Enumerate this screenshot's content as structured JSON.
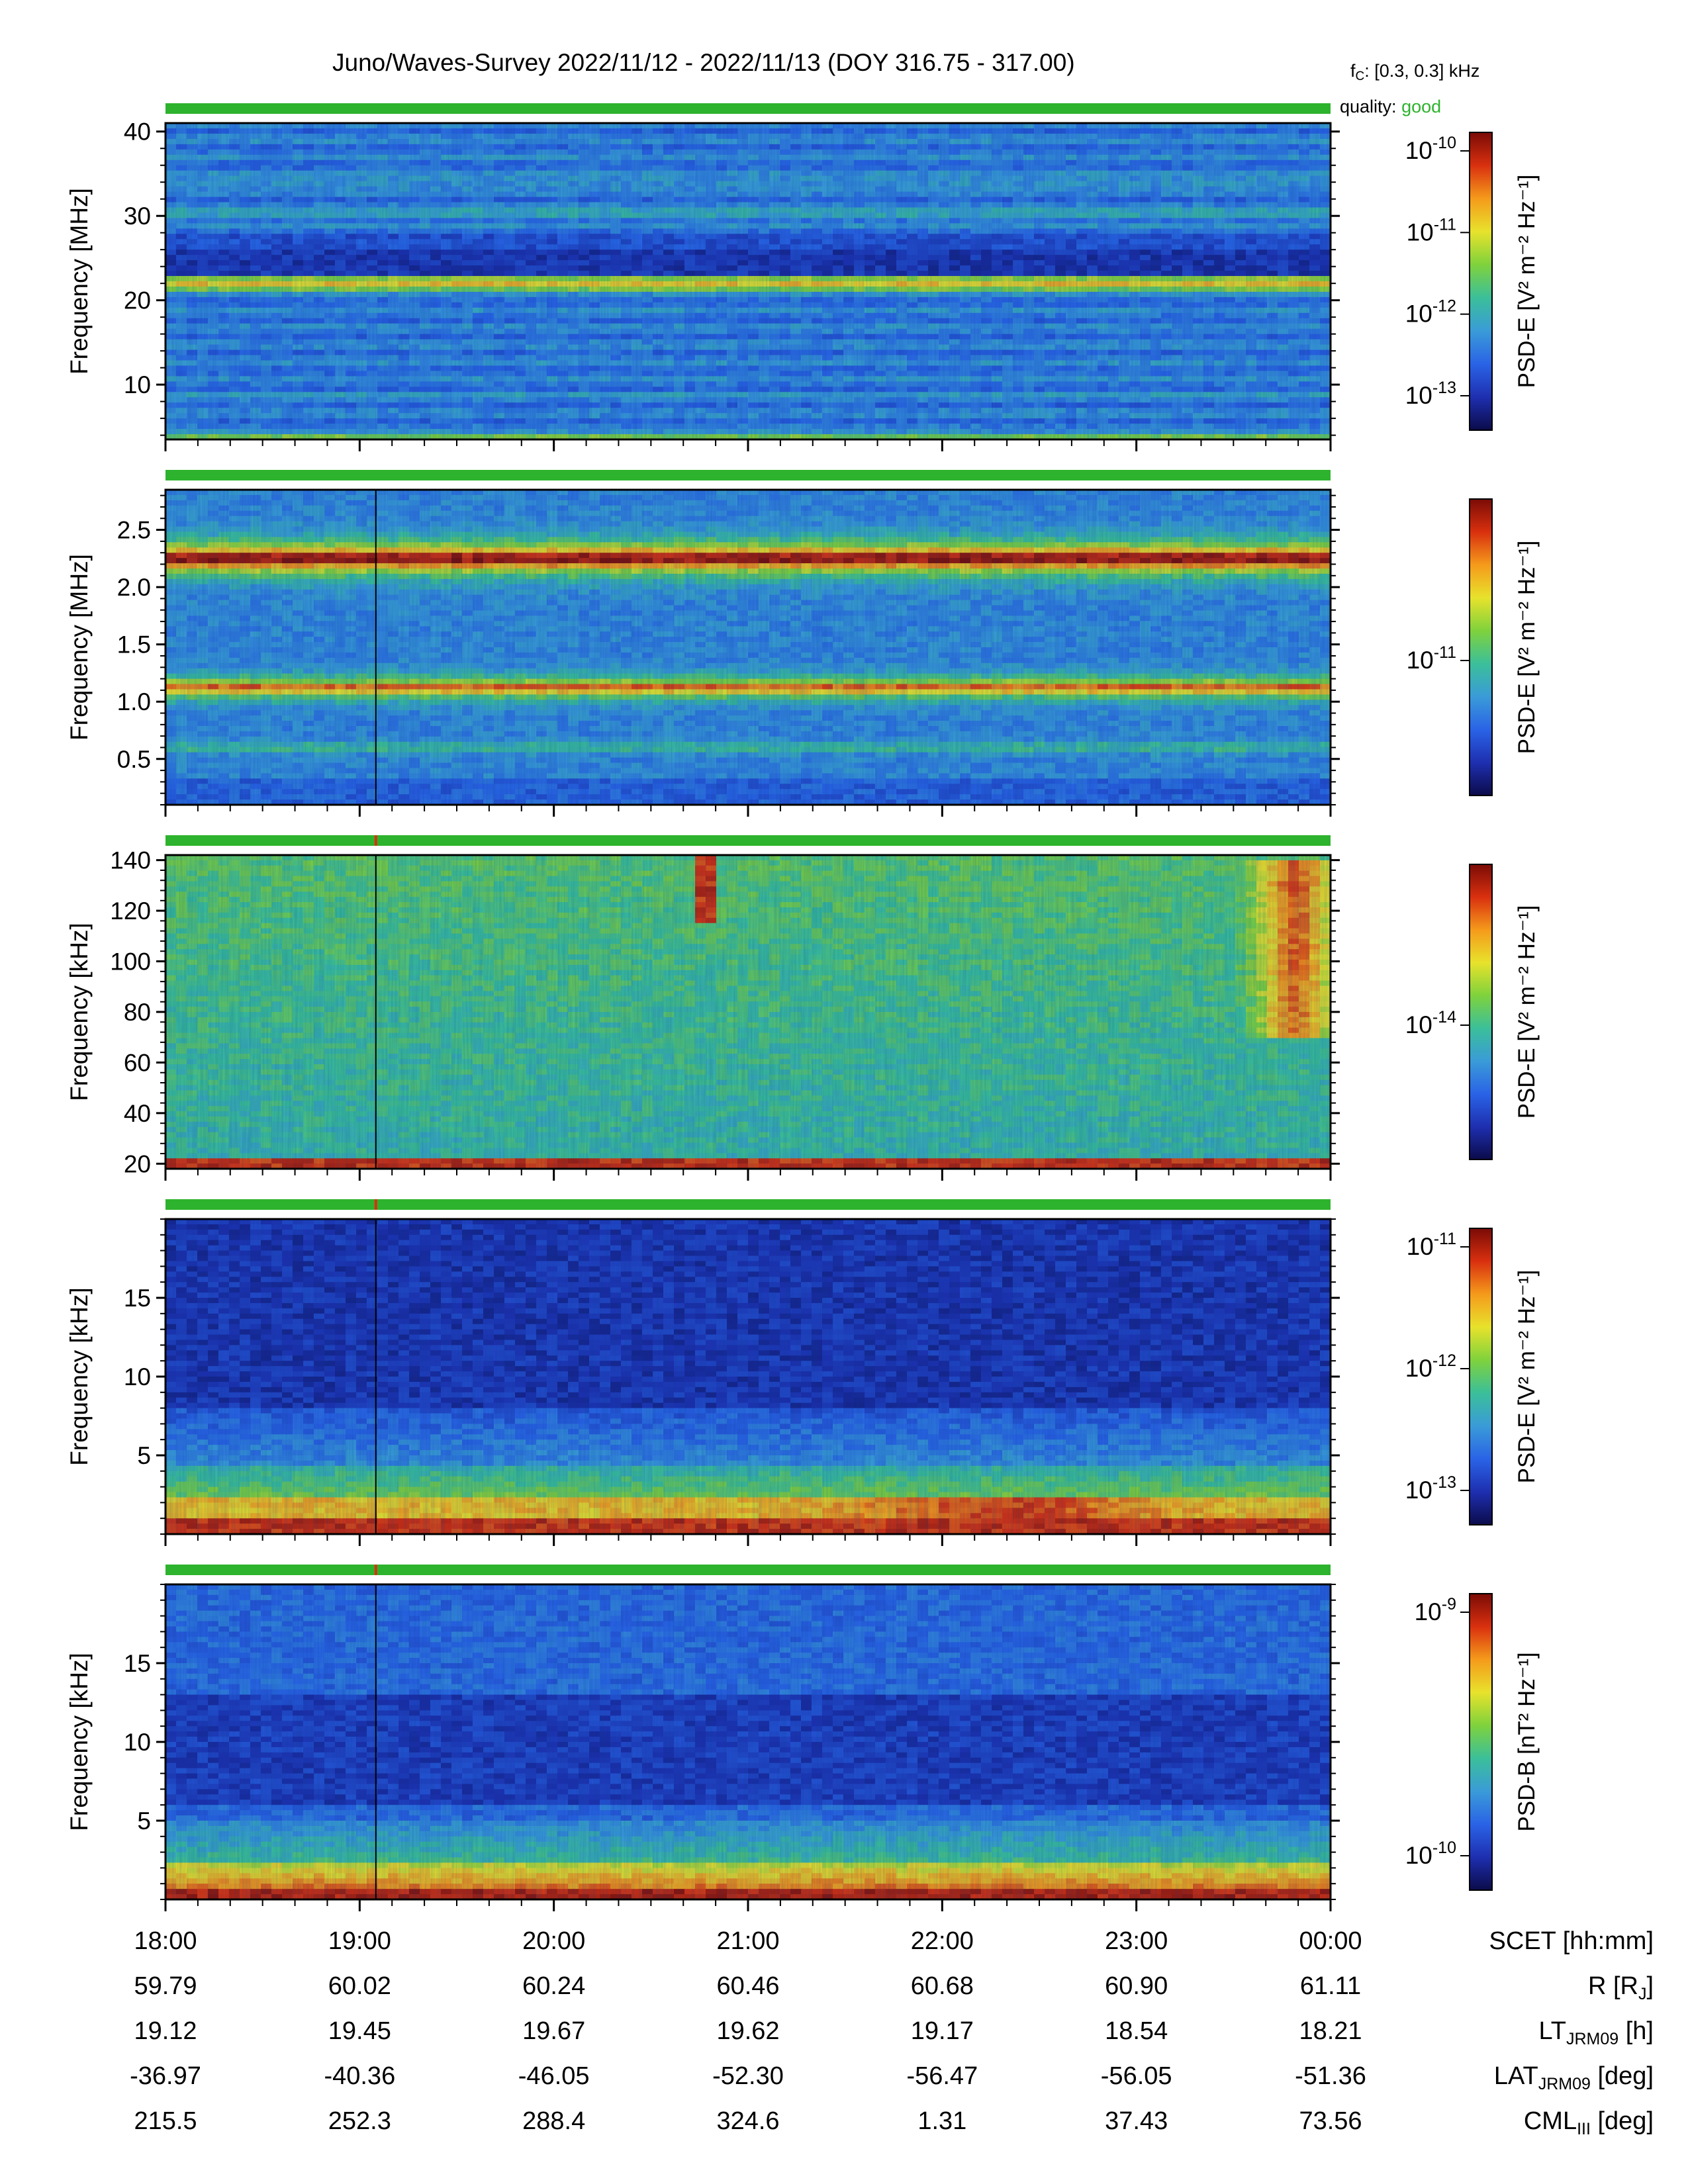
{
  "header": {
    "title": "Juno/Waves-Survey  2022/11/12 - 2022/11/13 (DOY 316.75 - 317.00)",
    "fc_label": "f",
    "fc_sub": "C",
    "fc_value": ": [0.3, 0.3] kHz",
    "quality_label": "quality:",
    "quality_value": "good"
  },
  "colors": {
    "quality_bar": "#2db32d",
    "marker_line": "#000000",
    "colormap": [
      "#0b0b4a",
      "#1e2fb0",
      "#2a63e6",
      "#3a9bd8",
      "#3bbf9a",
      "#7fd23c",
      "#e8e22c",
      "#f59a1b",
      "#d9300f",
      "#7a0b06"
    ]
  },
  "panels": [
    {
      "ylabel": "Frequency [MHz]",
      "yticks": [
        "40",
        "30",
        "20",
        "10"
      ],
      "ymin": 3.5,
      "ymax": 41,
      "ticks_v": [
        40,
        30,
        20,
        10
      ],
      "cb_label": "PSD-E [V² m⁻² Hz⁻¹]",
      "cb_ticks": [
        {
          "base": "10",
          "exp": "-10"
        },
        {
          "base": "10",
          "exp": "-11"
        },
        {
          "base": "10",
          "exp": "-12"
        },
        {
          "base": "10",
          "exp": "-13"
        }
      ],
      "bands": [
        {
          "f": 22,
          "level": 0.72
        },
        {
          "f": 30,
          "level": 0.38
        },
        {
          "f": 35,
          "level": 0.34
        },
        {
          "f": 12,
          "level": 0.32
        },
        {
          "f": 9,
          "level": 0.36
        }
      ]
    },
    {
      "ylabel": "Frequency [MHz]",
      "yticks": [
        "2.5",
        "2.0",
        "1.5",
        "1.0",
        "0.5"
      ],
      "ymin": 0.1,
      "ymax": 2.85,
      "ticks_v": [
        2.5,
        2.0,
        1.5,
        1.0,
        0.5
      ],
      "cb_label": "PSD-E [V² m⁻² Hz⁻¹]",
      "cb_ticks": [
        {
          "base": "10",
          "exp": "-11"
        }
      ],
      "bands": [
        {
          "f": 2.25,
          "level": 0.95
        },
        {
          "f": 1.12,
          "level": 0.85
        },
        {
          "f": 0.6,
          "level": 0.5
        }
      ]
    },
    {
      "ylabel": "Frequency [kHz]",
      "yticks": [
        "140",
        "120",
        "100",
        "80",
        "60",
        "40",
        "20"
      ],
      "ymin": 18,
      "ymax": 142,
      "ticks_v": [
        140,
        120,
        100,
        80,
        60,
        40,
        20
      ],
      "cb_label": "PSD-E [V² m⁻² Hz⁻¹]",
      "cb_ticks": [
        {
          "base": "10",
          "exp": "-14"
        }
      ],
      "bands": []
    },
    {
      "ylabel": "Frequency [kHz]",
      "yticks": [
        "15",
        "10",
        "5"
      ],
      "ymin": 0,
      "ymax": 20,
      "ticks_v": [
        15,
        10,
        5
      ],
      "cb_label": "PSD-E [V² m⁻² Hz⁻¹]",
      "cb_ticks": [
        {
          "base": "10",
          "exp": "-11"
        },
        {
          "base": "10",
          "exp": "-12"
        },
        {
          "base": "10",
          "exp": "-13"
        }
      ],
      "bands": []
    },
    {
      "ylabel": "Frequency [kHz]",
      "yticks": [
        "15",
        "10",
        "5"
      ],
      "ymin": 0,
      "ymax": 20,
      "ticks_v": [
        15,
        10,
        5
      ],
      "cb_label": "PSD-B [nT² Hz⁻¹]",
      "cb_ticks": [
        {
          "base": "10",
          "exp": "-9"
        },
        {
          "base": "10",
          "exp": "-10"
        }
      ],
      "bands": []
    }
  ],
  "chart_data": {
    "type": "heatmap",
    "title": "Juno/Waves-Survey  2022/11/12 - 2022/11/13 (DOY 316.75 - 317.00)",
    "x_range": [
      "18:00",
      "00:00"
    ],
    "x_ticks": [
      "18:00",
      "19:00",
      "20:00",
      "21:00",
      "22:00",
      "23:00",
      "00:00"
    ],
    "vertical_marker_time": "19:05",
    "panels": [
      {
        "ylabel": "Frequency [MHz]",
        "ylim": [
          3.5,
          41
        ],
        "zlabel": "PSD-E [V2 m-2 Hz-1]",
        "zscale": "log",
        "zlim": [
          "1e-13.5",
          "1e-10"
        ],
        "notable": "intense band near 22 MHz"
      },
      {
        "ylabel": "Frequency [MHz]",
        "ylim": [
          0.1,
          2.85
        ],
        "zlabel": "PSD-E [V2 m-2 Hz-1]",
        "zscale": "log",
        "notable": "intense bands near 2.25 MHz and 1.12 MHz"
      },
      {
        "ylabel": "Frequency [kHz]",
        "ylim": [
          18,
          142
        ],
        "zlabel": "PSD-E [V2 m-2 Hz-1]",
        "zscale": "log",
        "notable": "bursts near 20:45-20:50 and 23:30-00:00"
      },
      {
        "ylabel": "Frequency [kHz]",
        "ylim": [
          0,
          20
        ],
        "zlabel": "PSD-E [V2 m-2 Hz-1]",
        "zscale": "log",
        "notable": "intense emission below ~2 kHz"
      },
      {
        "ylabel": "Frequency [kHz]",
        "ylim": [
          0,
          20
        ],
        "zlabel": "PSD-B [nT2 Hz-1]",
        "zscale": "log",
        "notable": "intense emission below ~1 kHz"
      }
    ]
  },
  "ephemeris": {
    "columns": [
      "18:00",
      "19:00",
      "20:00",
      "21:00",
      "22:00",
      "23:00",
      "00:00"
    ],
    "rows": [
      {
        "label": "SCET [hh:mm]",
        "label_main": "SCET [hh:mm]",
        "label_sub": "",
        "label_tail": "",
        "values": [
          "18:00",
          "19:00",
          "20:00",
          "21:00",
          "22:00",
          "23:00",
          "00:00"
        ]
      },
      {
        "label": "R [RJ]",
        "label_main": "R [R",
        "label_sub": "J",
        "label_tail": "]",
        "values": [
          "59.79",
          "60.02",
          "60.24",
          "60.46",
          "60.68",
          "60.90",
          "61.11"
        ]
      },
      {
        "label": "LTJRM09 [h]",
        "label_main": "LT",
        "label_sub": "JRM09",
        "label_tail": " [h]",
        "values": [
          "19.12",
          "19.45",
          "19.67",
          "19.62",
          "19.17",
          "18.54",
          "18.21"
        ]
      },
      {
        "label": "LATJRM09 [deg]",
        "label_main": "LAT",
        "label_sub": "JRM09",
        "label_tail": " [deg]",
        "values": [
          "-36.97",
          "-40.36",
          "-46.05",
          "-52.30",
          "-56.47",
          "-56.05",
          "-51.36"
        ]
      },
      {
        "label": "CMLIII [deg]",
        "label_main": "CML",
        "label_sub": "III",
        "label_tail": " [deg]",
        "values": [
          "215.5",
          "252.3",
          "288.4",
          "324.6",
          "1.31",
          "37.43",
          "73.56"
        ]
      }
    ]
  }
}
